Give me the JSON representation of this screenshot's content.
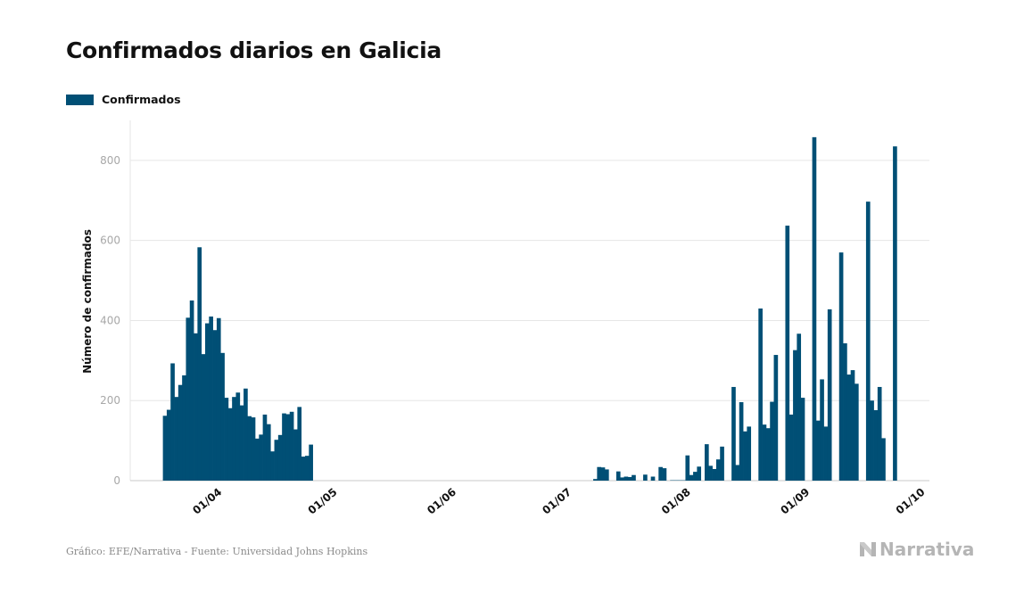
{
  "header": {
    "title": "Confirmados diarios en Galicia"
  },
  "footer": {
    "source": "Gráfico: EFE/Narrativa - Fuente: Universidad Johns Hopkins",
    "brand": "Narrativa"
  },
  "colors": {
    "bar": "#004f75",
    "grid": "#e6e6e6",
    "axis": "#c8c8c8",
    "tick_label": "#a8a8a8",
    "brand": "#b5b5b5"
  },
  "chart_data": {
    "type": "bar",
    "title": "Confirmados diarios en Galicia",
    "ylabel": "Número de confirmados",
    "xlabel": "",
    "ylim": [
      0,
      900
    ],
    "yticks": [
      0,
      200,
      400,
      600,
      800
    ],
    "x_ticks": [
      "01/04",
      "01/05",
      "01/06",
      "01/07",
      "01/08",
      "01/09",
      "01/10"
    ],
    "x_range": [
      "2020-03-08",
      "2020-10-02"
    ],
    "grid": true,
    "legend": {
      "position": "top-left",
      "entries": [
        "Confirmados"
      ]
    },
    "series": [
      {
        "name": "Confirmados",
        "points": [
          [
            "2020-03-17",
            162
          ],
          [
            "2020-03-18",
            177
          ],
          [
            "2020-03-19",
            293
          ],
          [
            "2020-03-20",
            209
          ],
          [
            "2020-03-21",
            239
          ],
          [
            "2020-03-22",
            263
          ],
          [
            "2020-03-23",
            407
          ],
          [
            "2020-03-24",
            450
          ],
          [
            "2020-03-25",
            368
          ],
          [
            "2020-03-26",
            583
          ],
          [
            "2020-03-27",
            316
          ],
          [
            "2020-03-28",
            393
          ],
          [
            "2020-03-29",
            410
          ],
          [
            "2020-03-30",
            376
          ],
          [
            "2020-03-31",
            406
          ],
          [
            "2020-04-01",
            319
          ],
          [
            "2020-04-02",
            207
          ],
          [
            "2020-04-03",
            181
          ],
          [
            "2020-04-04",
            209
          ],
          [
            "2020-04-05",
            220
          ],
          [
            "2020-04-06",
            188
          ],
          [
            "2020-04-07",
            230
          ],
          [
            "2020-04-08",
            161
          ],
          [
            "2020-04-09",
            158
          ],
          [
            "2020-04-10",
            105
          ],
          [
            "2020-04-11",
            115
          ],
          [
            "2020-04-12",
            165
          ],
          [
            "2020-04-13",
            141
          ],
          [
            "2020-04-14",
            73
          ],
          [
            "2020-04-15",
            102
          ],
          [
            "2020-04-16",
            114
          ],
          [
            "2020-04-17",
            168
          ],
          [
            "2020-04-18",
            166
          ],
          [
            "2020-04-19",
            172
          ],
          [
            "2020-04-20",
            128
          ],
          [
            "2020-04-21",
            184
          ],
          [
            "2020-04-22",
            60
          ],
          [
            "2020-04-23",
            62
          ],
          [
            "2020-04-24",
            90
          ],
          [
            "2020-07-07",
            4
          ],
          [
            "2020-07-08",
            34
          ],
          [
            "2020-07-09",
            33
          ],
          [
            "2020-07-10",
            28
          ],
          [
            "2020-07-13",
            23
          ],
          [
            "2020-07-14",
            8
          ],
          [
            "2020-07-15",
            10
          ],
          [
            "2020-07-16",
            9
          ],
          [
            "2020-07-17",
            14
          ],
          [
            "2020-07-20",
            15
          ],
          [
            "2020-07-22",
            10
          ],
          [
            "2020-07-24",
            34
          ],
          [
            "2020-07-25",
            31
          ],
          [
            "2020-07-27",
            1
          ],
          [
            "2020-07-28",
            1
          ],
          [
            "2020-07-29",
            1
          ],
          [
            "2020-07-30",
            1
          ],
          [
            "2020-07-31",
            63
          ],
          [
            "2020-08-01",
            14
          ],
          [
            "2020-08-02",
            22
          ],
          [
            "2020-08-03",
            35
          ],
          [
            "2020-08-05",
            91
          ],
          [
            "2020-08-06",
            37
          ],
          [
            "2020-08-07",
            29
          ],
          [
            "2020-08-08",
            53
          ],
          [
            "2020-08-09",
            85
          ],
          [
            "2020-08-12",
            234
          ],
          [
            "2020-08-13",
            39
          ],
          [
            "2020-08-14",
            196
          ],
          [
            "2020-08-15",
            123
          ],
          [
            "2020-08-16",
            135
          ],
          [
            "2020-08-19",
            430
          ],
          [
            "2020-08-20",
            140
          ],
          [
            "2020-08-21",
            131
          ],
          [
            "2020-08-22",
            197
          ],
          [
            "2020-08-23",
            314
          ],
          [
            "2020-08-26",
            637
          ],
          [
            "2020-08-27",
            165
          ],
          [
            "2020-08-28",
            326
          ],
          [
            "2020-08-29",
            367
          ],
          [
            "2020-08-30",
            207
          ],
          [
            "2020-09-02",
            858
          ],
          [
            "2020-09-03",
            150
          ],
          [
            "2020-09-04",
            253
          ],
          [
            "2020-09-05",
            135
          ],
          [
            "2020-09-06",
            428
          ],
          [
            "2020-09-09",
            570
          ],
          [
            "2020-09-10",
            343
          ],
          [
            "2020-09-11",
            265
          ],
          [
            "2020-09-12",
            276
          ],
          [
            "2020-09-13",
            242
          ],
          [
            "2020-09-16",
            697
          ],
          [
            "2020-09-17",
            200
          ],
          [
            "2020-09-18",
            176
          ],
          [
            "2020-09-19",
            234
          ],
          [
            "2020-09-20",
            106
          ],
          [
            "2020-09-23",
            835
          ]
        ]
      }
    ]
  }
}
